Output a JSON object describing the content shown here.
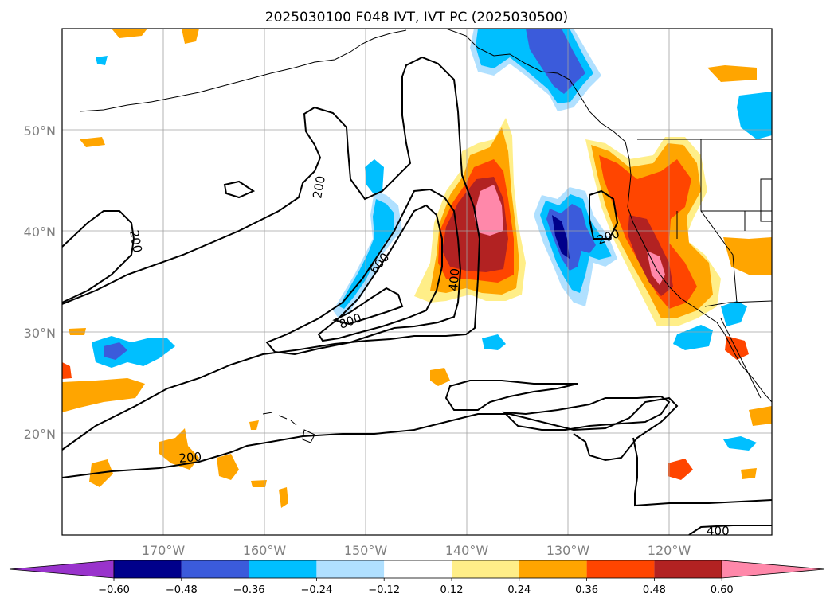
{
  "title": "2025030100 F048 IVT, IVT PC (2025030500)",
  "axes": {
    "lat_labels": [
      "50°N",
      "40°N",
      "30°N",
      "20°N"
    ],
    "lon_labels": [
      "170°W",
      "160°W",
      "150°W",
      "140°W",
      "130°W",
      "120°W"
    ],
    "lat_values": [
      50,
      40,
      30,
      20
    ],
    "lon_values": [
      -170,
      -160,
      -150,
      -140,
      -130,
      -120
    ],
    "grid": true
  },
  "colorbar": {
    "labels": [
      "−0.60",
      "−0.48",
      "−0.36",
      "−0.24",
      "−0.12",
      "0.12",
      "0.24",
      "0.36",
      "0.48",
      "0.60"
    ],
    "bounds": [
      -0.6,
      -0.48,
      -0.36,
      -0.24,
      -0.12,
      0.12,
      0.24,
      0.36,
      0.48,
      0.6
    ],
    "colors": [
      "#9933cc",
      "#00008b",
      "#3b5bdb",
      "#00bfff",
      "#b0e0ff",
      "#ffffff",
      "#ffee88",
      "#ffa500",
      "#ff4500",
      "#b22222",
      "#ff88aa"
    ],
    "extend": "both"
  },
  "contour_labels": [
    "200",
    "200",
    "200",
    "200",
    "400",
    "400",
    "600",
    "800"
  ],
  "colors": {
    "contour": "#000000",
    "grid": "#a0a0a0",
    "coast": "#000000"
  }
}
